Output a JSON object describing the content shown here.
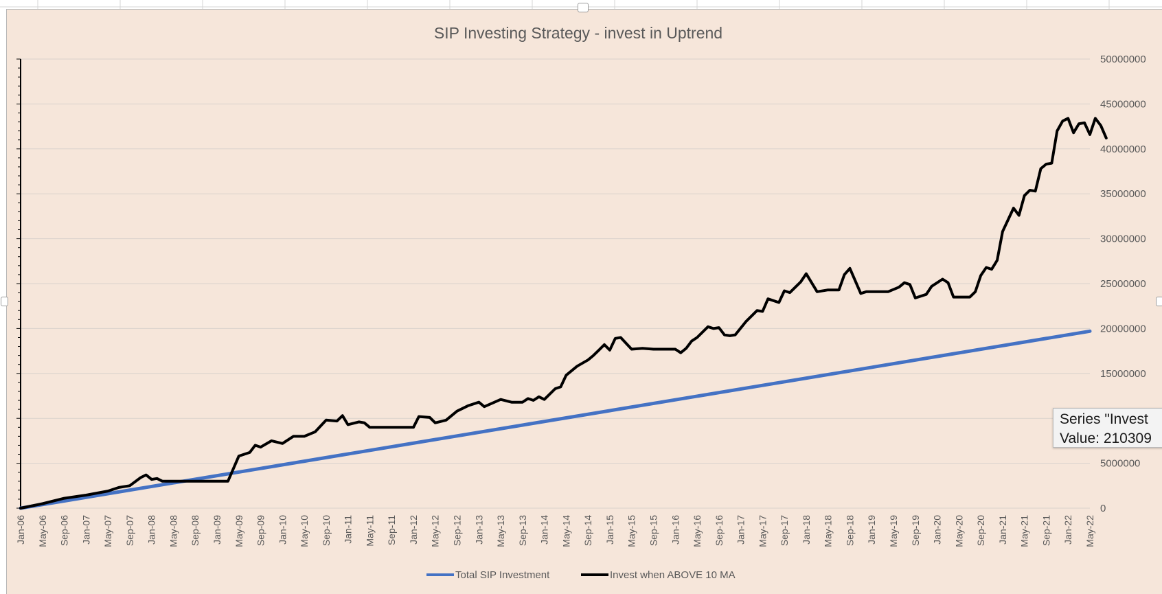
{
  "tooltip": {
    "line1": "Series \"Invest",
    "line2": "Value: 210309"
  },
  "chart_data": {
    "type": "line",
    "title": "SIP Investing Strategy  - invest in Uptrend",
    "xlabel": "",
    "ylabel": "",
    "ylim": [
      0,
      50000000
    ],
    "y_ticks": [
      "0",
      "5000000",
      "10000000",
      "15000000",
      "20000000",
      "25000000",
      "30000000",
      "35000000",
      "40000000",
      "45000000",
      "50000000"
    ],
    "y_axis_side": "right",
    "grid": true,
    "legend_position": "bottom",
    "x_start": "Jan-06",
    "x_end": "May-22",
    "x_tick_labels": [
      "Jan-06",
      "May-06",
      "Sep-06",
      "Jan-07",
      "May-07",
      "Sep-07",
      "Jan-08",
      "May-08",
      "Sep-08",
      "Jan-09",
      "May-09",
      "Sep-09",
      "Jan-10",
      "May-10",
      "Sep-10",
      "Jan-11",
      "May-11",
      "Sep-11",
      "Jan-12",
      "May-12",
      "Sep-12",
      "Jan-13",
      "May-13",
      "Sep-13",
      "Jan-14",
      "May-14",
      "Sep-14",
      "Jan-15",
      "May-15",
      "Sep-15",
      "Jan-16",
      "May-16",
      "Sep-16",
      "Jan-17",
      "May-17",
      "Sep-17",
      "Jan-18",
      "May-18",
      "Sep-18",
      "Jan-19",
      "May-19",
      "Sep-19",
      "Jan-20",
      "May-20",
      "Sep-20",
      "Jan-21",
      "May-21",
      "Sep-21",
      "Jan-22",
      "May-22"
    ],
    "series": [
      {
        "name": "Total SIP Investment",
        "color": "#4472c4",
        "points": [
          [
            "Jan-06",
            0
          ],
          [
            "May-22",
            19700000
          ]
        ]
      },
      {
        "name": "Invest when ABOVE 10 MA",
        "color": "#000000",
        "points": [
          [
            "Jan-06",
            0
          ],
          [
            "May-06",
            500000
          ],
          [
            "Sep-06",
            1100000
          ],
          [
            "Jan-07",
            1450000
          ],
          [
            "May-07",
            1900000
          ],
          [
            "Jul-07",
            2300000
          ],
          [
            "Sep-07",
            2500000
          ],
          [
            "Nov-07",
            3400000
          ],
          [
            "Dec-07",
            3700000
          ],
          [
            "Jan-08",
            3200000
          ],
          [
            "Feb-08",
            3300000
          ],
          [
            "Mar-08",
            3000000
          ],
          [
            "Sep-08",
            3000000
          ],
          [
            "Mar-09",
            3000000
          ],
          [
            "May-09",
            5800000
          ],
          [
            "Jul-09",
            6200000
          ],
          [
            "Aug-09",
            7000000
          ],
          [
            "Sep-09",
            6800000
          ],
          [
            "Nov-09",
            7500000
          ],
          [
            "Jan-10",
            7200000
          ],
          [
            "Mar-10",
            8000000
          ],
          [
            "May-10",
            8000000
          ],
          [
            "Jul-10",
            8500000
          ],
          [
            "Sep-10",
            9800000
          ],
          [
            "Nov-10",
            9700000
          ],
          [
            "Dec-10",
            10300000
          ],
          [
            "Jan-11",
            9300000
          ],
          [
            "Mar-11",
            9600000
          ],
          [
            "Apr-11",
            9500000
          ],
          [
            "May-11",
            9000000
          ],
          [
            "Jan-12",
            9000000
          ],
          [
            "Feb-12",
            10200000
          ],
          [
            "Apr-12",
            10100000
          ],
          [
            "May-12",
            9500000
          ],
          [
            "Jul-12",
            9800000
          ],
          [
            "Sep-12",
            10800000
          ],
          [
            "Nov-12",
            11400000
          ],
          [
            "Jan-13",
            11800000
          ],
          [
            "Feb-13",
            11300000
          ],
          [
            "May-13",
            12100000
          ],
          [
            "Jul-13",
            11800000
          ],
          [
            "Sep-13",
            11800000
          ],
          [
            "Oct-13",
            12200000
          ],
          [
            "Nov-13",
            12000000
          ],
          [
            "Dec-13",
            12400000
          ],
          [
            "Jan-14",
            12100000
          ],
          [
            "Mar-14",
            13300000
          ],
          [
            "Apr-14",
            13500000
          ],
          [
            "May-14",
            14800000
          ],
          [
            "Jul-14",
            15800000
          ],
          [
            "Sep-14",
            16500000
          ],
          [
            "Oct-14",
            17000000
          ],
          [
            "Nov-14",
            17600000
          ],
          [
            "Dec-14",
            18200000
          ],
          [
            "Jan-15",
            17600000
          ],
          [
            "Feb-15",
            18900000
          ],
          [
            "Mar-15",
            19000000
          ],
          [
            "May-15",
            17700000
          ],
          [
            "Jul-15",
            17800000
          ],
          [
            "Sep-15",
            17700000
          ],
          [
            "Jan-16",
            17700000
          ],
          [
            "Feb-16",
            17300000
          ],
          [
            "Mar-16",
            17800000
          ],
          [
            "Apr-16",
            18600000
          ],
          [
            "May-16",
            19000000
          ],
          [
            "Jul-16",
            20200000
          ],
          [
            "Aug-16",
            20000000
          ],
          [
            "Sep-16",
            20100000
          ],
          [
            "Oct-16",
            19300000
          ],
          [
            "Nov-16",
            19200000
          ],
          [
            "Dec-16",
            19300000
          ],
          [
            "Feb-17",
            20800000
          ],
          [
            "Apr-17",
            22000000
          ],
          [
            "May-17",
            21900000
          ],
          [
            "Jun-17",
            23300000
          ],
          [
            "Aug-17",
            22900000
          ],
          [
            "Sep-17",
            24200000
          ],
          [
            "Oct-17",
            24000000
          ],
          [
            "Dec-17",
            25200000
          ],
          [
            "Jan-18",
            26100000
          ],
          [
            "Mar-18",
            24100000
          ],
          [
            "May-18",
            24300000
          ],
          [
            "Jul-18",
            24300000
          ],
          [
            "Aug-18",
            26000000
          ],
          [
            "Sep-18",
            26700000
          ],
          [
            "Nov-18",
            23900000
          ],
          [
            "Dec-18",
            24100000
          ],
          [
            "Apr-19",
            24100000
          ],
          [
            "Jun-19",
            24600000
          ],
          [
            "Jul-19",
            25100000
          ],
          [
            "Aug-19",
            24900000
          ],
          [
            "Sep-19",
            23400000
          ],
          [
            "Nov-19",
            23800000
          ],
          [
            "Dec-19",
            24700000
          ],
          [
            "Feb-20",
            25500000
          ],
          [
            "Mar-20",
            25100000
          ],
          [
            "Apr-20",
            23500000
          ],
          [
            "Jul-20",
            23500000
          ],
          [
            "Aug-20",
            24100000
          ],
          [
            "Sep-20",
            25900000
          ],
          [
            "Oct-20",
            26800000
          ],
          [
            "Nov-20",
            26600000
          ],
          [
            "Dec-20",
            27600000
          ],
          [
            "Jan-21",
            30800000
          ],
          [
            "Mar-21",
            33400000
          ],
          [
            "Apr-21",
            32600000
          ],
          [
            "May-21",
            34800000
          ],
          [
            "Jun-21",
            35400000
          ],
          [
            "Jul-21",
            35300000
          ],
          [
            "Aug-21",
            37800000
          ],
          [
            "Sep-21",
            38300000
          ],
          [
            "Oct-21",
            38400000
          ],
          [
            "Nov-21",
            42000000
          ],
          [
            "Dec-21",
            43100000
          ],
          [
            "Jan-22",
            43400000
          ],
          [
            "Feb-22",
            41800000
          ],
          [
            "Mar-22",
            42800000
          ],
          [
            "Apr-22",
            42900000
          ],
          [
            "May-22",
            41600000
          ],
          [
            "Jun-22",
            43400000
          ],
          [
            "Jul-22",
            42600000
          ],
          [
            "Aug-22",
            41200000
          ]
        ]
      }
    ]
  }
}
